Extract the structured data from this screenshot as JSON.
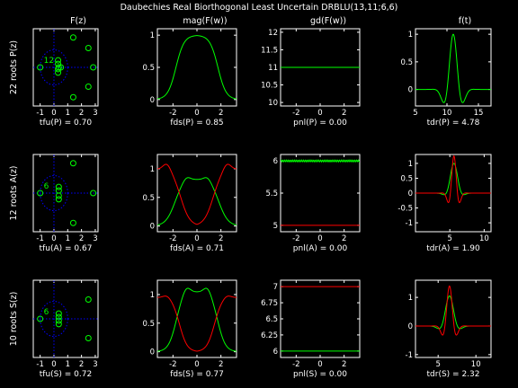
{
  "figure": {
    "title": "Daubechies Real Biorthogonal Least Uncertain DRBLU(13,11;6,6)",
    "background": "#000000",
    "axis_color": "#ffffff",
    "colors": {
      "green": "#00ff00",
      "red": "#ff0000",
      "blue": "#0000ff"
    },
    "column_titles": [
      "F(z)",
      "mag(F(w))",
      "gd(F(w))",
      "f(t)"
    ],
    "row_labels": [
      "22 roots P(z)",
      "12 roots A(z)",
      "10 roots S(z)"
    ]
  },
  "chart_data": [
    {
      "id": "P-roots",
      "type": "scatter",
      "row": 0,
      "col": 0,
      "title": "F(z)",
      "ylabel": "22 roots P(z)",
      "xlabel": "tfu(P) = 0.70",
      "xlim": [
        -1.5,
        3.2
      ],
      "ylim": [
        -2.2,
        2.2
      ],
      "xticks": [
        -1,
        0,
        1,
        2,
        3
      ],
      "yticks": [],
      "unit_circle": true,
      "multiplicity": {
        "label": "12",
        "x": -1,
        "y": 0
      },
      "points": [
        [
          -1,
          0
        ],
        [
          0.3,
          0.4
        ],
        [
          0.3,
          0.2
        ],
        [
          0.3,
          -0.1
        ],
        [
          0.3,
          -0.3
        ],
        [
          0.35,
          0
        ],
        [
          0.5,
          0
        ],
        [
          1.4,
          1.7
        ],
        [
          1.4,
          -1.7
        ],
        [
          2.5,
          1.1
        ],
        [
          2.5,
          -1.1
        ],
        [
          2.85,
          0
        ]
      ]
    },
    {
      "id": "P-mag",
      "type": "line",
      "row": 0,
      "col": 1,
      "xlabel": "fds(P) = 0.85",
      "xlim": [
        -3.3,
        3.3
      ],
      "ylim": [
        -0.1,
        1.1
      ],
      "xticks": [
        -2,
        0,
        2
      ],
      "yticks": [
        0,
        0.5,
        1
      ],
      "series": [
        {
          "color": "green",
          "kind": "plateau",
          "amp": 1,
          "edge": 1.75,
          "width": 0.34
        }
      ]
    },
    {
      "id": "P-gd",
      "type": "line",
      "row": 0,
      "col": 2,
      "xlabel": "pnl(P) = 0.00",
      "xlim": [
        -3.3,
        3.3
      ],
      "ylim": [
        9.9,
        12.1
      ],
      "xticks": [
        -2,
        0,
        2
      ],
      "yticks": [
        10,
        10.5,
        11,
        11.5,
        12
      ],
      "series": [
        {
          "color": "green",
          "kind": "const",
          "value": 11
        }
      ]
    },
    {
      "id": "P-time",
      "type": "line",
      "row": 0,
      "col": 3,
      "xlabel": "tdr(P) = 4.78",
      "xlim": [
        5,
        17
      ],
      "ylim": [
        -0.3,
        1.1
      ],
      "xticks": [
        5,
        10,
        15
      ],
      "yticks": [
        0,
        0.5,
        1
      ],
      "series": [
        {
          "color": "green",
          "kind": "wavelet",
          "center": 11,
          "amp": 1,
          "freq": 1.6,
          "sigma": 1.0
        }
      ]
    },
    {
      "id": "A-roots",
      "type": "scatter",
      "row": 1,
      "col": 0,
      "title": "",
      "ylabel": "12 roots A(z)",
      "xlabel": "tfu(A) = 0.67",
      "xlim": [
        -1.5,
        3.2
      ],
      "ylim": [
        -2.2,
        2.2
      ],
      "xticks": [
        -1,
        0,
        1,
        2,
        3
      ],
      "yticks": [],
      "unit_circle": true,
      "multiplicity": {
        "label": "6",
        "x": -1,
        "y": 0
      },
      "points": [
        [
          -1,
          0
        ],
        [
          0.35,
          0.35
        ],
        [
          0.35,
          0.15
        ],
        [
          0.35,
          -0.35
        ],
        [
          0.35,
          -0.15
        ],
        [
          1.4,
          1.7
        ],
        [
          1.4,
          -1.7
        ],
        [
          2.85,
          0
        ]
      ]
    },
    {
      "id": "A-mag",
      "type": "line",
      "row": 1,
      "col": 1,
      "xlabel": "fds(A) = 0.71",
      "xlim": [
        -3.3,
        3.3
      ],
      "ylim": [
        -0.1,
        1.25
      ],
      "xticks": [
        -2,
        0,
        2
      ],
      "yticks": [
        0,
        0.5,
        1
      ],
      "series": [
        {
          "color": "green",
          "kind": "plateau-bump",
          "amp": 0.82,
          "edge": 1.85,
          "width": 0.38,
          "bump": 0.08
        },
        {
          "color": "red",
          "kind": "notch",
          "amp": 1.0,
          "edge": 1.35,
          "width": 0.38,
          "shoulder": 0.12
        }
      ]
    },
    {
      "id": "A-gd",
      "type": "line",
      "row": 1,
      "col": 2,
      "xlabel": "pnl(A) = 0.00",
      "xlim": [
        -3.3,
        3.3
      ],
      "ylim": [
        4.9,
        6.1
      ],
      "xticks": [
        -2,
        0,
        2
      ],
      "yticks": [
        5,
        5.5,
        6
      ],
      "series": [
        {
          "color": "green",
          "kind": "const",
          "value": 6,
          "ripple": 0.015
        },
        {
          "color": "red",
          "kind": "const",
          "value": 5
        }
      ]
    },
    {
      "id": "A-time",
      "type": "line",
      "row": 1,
      "col": 3,
      "xlabel": "tdr(A) = 1.90",
      "xlim": [
        0,
        11
      ],
      "ylim": [
        -1.3,
        1.3
      ],
      "xticks": [
        5,
        10
      ],
      "yticks": [
        -1,
        -0.5,
        0,
        0.5,
        1
      ],
      "series": [
        {
          "color": "green",
          "kind": "wavelet",
          "center": 5.6,
          "amp": 1.0,
          "freq": 1.4,
          "sigma": 0.7
        },
        {
          "color": "red",
          "kind": "wavelet",
          "center": 5.6,
          "amp": 1.25,
          "freq": 3.0,
          "sigma": 0.55
        }
      ]
    },
    {
      "id": "S-roots",
      "type": "scatter",
      "row": 2,
      "col": 0,
      "title": "",
      "ylabel": "10 roots S(z)",
      "xlabel": "tfu(S) = 0.72",
      "xlim": [
        -1.5,
        3.2
      ],
      "ylim": [
        -2.2,
        2.2
      ],
      "xticks": [
        -1,
        0,
        1,
        2,
        3
      ],
      "yticks": [],
      "unit_circle": true,
      "multiplicity": {
        "label": "6",
        "x": -1,
        "y": 0
      },
      "points": [
        [
          -1,
          0
        ],
        [
          0.35,
          0.3
        ],
        [
          0.35,
          0.1
        ],
        [
          0.35,
          -0.1
        ],
        [
          0.35,
          -0.3
        ],
        [
          2.5,
          1.1
        ],
        [
          2.5,
          -1.1
        ]
      ]
    },
    {
      "id": "S-mag",
      "type": "line",
      "row": 2,
      "col": 1,
      "xlabel": "fds(S) = 0.77",
      "xlim": [
        -3.3,
        3.3
      ],
      "ylim": [
        -0.1,
        1.25
      ],
      "xticks": [
        -2,
        0,
        2
      ],
      "yticks": [
        0,
        0.5,
        1
      ],
      "series": [
        {
          "color": "green",
          "kind": "plateau-bump",
          "amp": 1.05,
          "edge": 1.75,
          "width": 0.32,
          "bump": 0.12
        },
        {
          "color": "red",
          "kind": "notch",
          "amp": 0.95,
          "edge": 1.45,
          "width": 0.32,
          "shoulder": 0.05
        }
      ]
    },
    {
      "id": "S-gd",
      "type": "line",
      "row": 2,
      "col": 2,
      "xlabel": "pnl(S) = 0.00",
      "xlim": [
        -3.3,
        3.3
      ],
      "ylim": [
        5.9,
        7.1
      ],
      "xticks": [
        -2,
        0,
        2
      ],
      "yticks": [
        6,
        6.25,
        6.5,
        6.75,
        7
      ],
      "series": [
        {
          "color": "red",
          "kind": "const",
          "value": 7
        },
        {
          "color": "green",
          "kind": "const",
          "value": 6
        }
      ]
    },
    {
      "id": "S-time",
      "type": "line",
      "row": 2,
      "col": 3,
      "xlabel": "tdr(S) = 2.32",
      "xlim": [
        2,
        12
      ],
      "ylim": [
        -1.1,
        1.6
      ],
      "xticks": [
        5,
        10
      ],
      "yticks": [
        -1,
        0,
        1
      ],
      "series": [
        {
          "color": "green",
          "kind": "wavelet",
          "center": 6.5,
          "amp": 1.05,
          "freq": 1.5,
          "sigma": 0.75
        },
        {
          "color": "red",
          "kind": "wavelet",
          "center": 6.5,
          "amp": 1.4,
          "freq": 2.6,
          "sigma": 0.6
        }
      ]
    }
  ]
}
